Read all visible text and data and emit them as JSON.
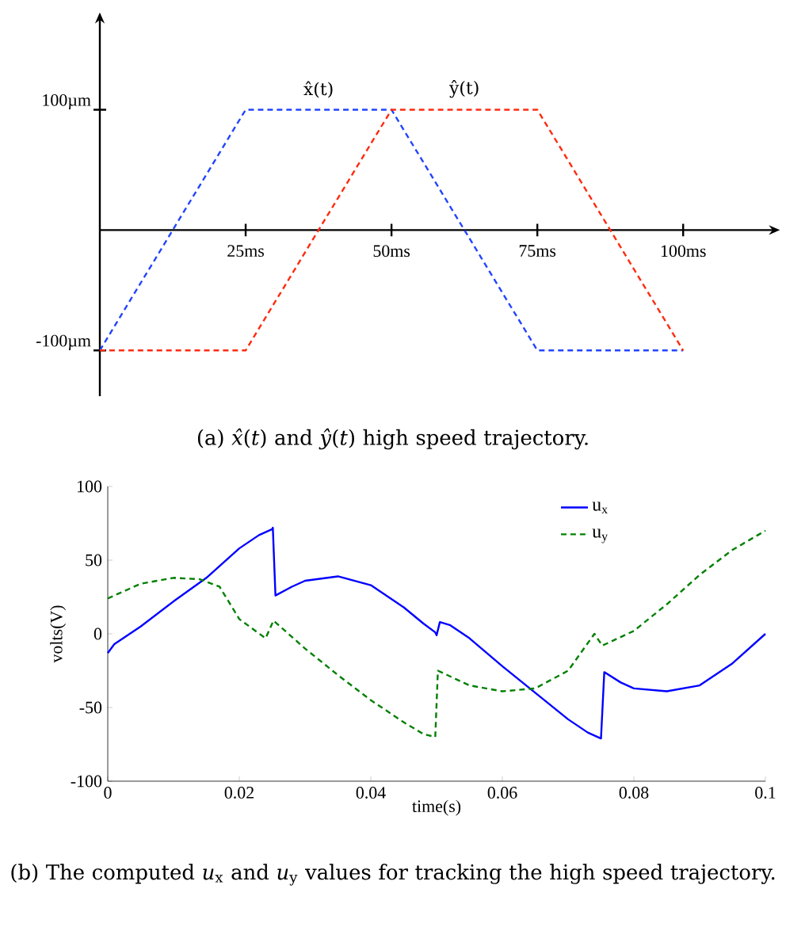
{
  "chart_data": [
    {
      "type": "line",
      "marker": "none",
      "xlim": [
        0,
        116
      ],
      "ylim": [
        -138,
        178
      ],
      "xticks": [
        {
          "value": 25,
          "label": "25ms"
        },
        {
          "value": 50,
          "label": "50ms"
        },
        {
          "value": 75,
          "label": "75ms"
        },
        {
          "value": 100,
          "label": "100ms"
        }
      ],
      "yticks": [
        {
          "value": -100,
          "label": "-100µm"
        },
        {
          "value": 100,
          "label": "100µm"
        }
      ],
      "series": [
        {
          "name": "x̂(t)",
          "color": "#2244ff",
          "line_style": "dashed",
          "x": [
            0,
            25,
            50,
            75,
            100
          ],
          "values": [
            -100,
            100,
            100,
            -100,
            -100
          ]
        },
        {
          "name": "ŷ(t)",
          "color": "#ff2a10",
          "line_style": "dashed",
          "x": [
            0,
            25,
            50,
            75,
            100
          ],
          "values": [
            -100,
            -100,
            100,
            100,
            -100
          ]
        }
      ],
      "annotations": [
        "(a) *x̂*(*t*) and *ŷ*(*t*) high speed trajectory."
      ]
    },
    {
      "type": "line",
      "marker": "none",
      "xlabel": "time(s)",
      "ylabel": "volts(V)",
      "legend": "top right",
      "grid": false,
      "xlim": [
        0,
        0.1
      ],
      "ylim": [
        -100,
        100
      ],
      "xticks": [
        0,
        0.02,
        0.04,
        0.06,
        0.08,
        0.1
      ],
      "yticks": [
        -100,
        -50,
        0,
        50,
        100
      ],
      "series": [
        {
          "name": "u$_{x}$",
          "color": "#0000ff",
          "line_style": "solid",
          "x": [
            0,
            0.001,
            0.005,
            0.01,
            0.015,
            0.02,
            0.023,
            0.025,
            0.0251,
            0.0255,
            0.028,
            0.03,
            0.035,
            0.04,
            0.045,
            0.048,
            0.0498,
            0.05,
            0.0505,
            0.052,
            0.055,
            0.06,
            0.065,
            0.07,
            0.073,
            0.075,
            0.0755,
            0.078,
            0.08,
            0.085,
            0.09,
            0.095,
            0.1
          ],
          "values": [
            -13,
            -7,
            5,
            22,
            38,
            58,
            67,
            71,
            72,
            26,
            32,
            36,
            39,
            33,
            18,
            7,
            1,
            -1,
            8,
            6,
            -3,
            -22,
            -40,
            -58,
            -67,
            -71,
            -26,
            -33,
            -37,
            -39,
            -35,
            -20,
            0
          ]
        },
        {
          "name": "u$_{y}$",
          "color": "#008000",
          "line_style": "dashed",
          "x": [
            0,
            0.005,
            0.01,
            0.014,
            0.017,
            0.02,
            0.024,
            0.0252,
            0.03,
            0.035,
            0.04,
            0.045,
            0.048,
            0.0498,
            0.0502,
            0.055,
            0.06,
            0.065,
            0.07,
            0.074,
            0.0752,
            0.08,
            0.085,
            0.09,
            0.095,
            0.1
          ],
          "values": [
            24,
            34,
            38,
            37,
            32,
            10,
            -3,
            9,
            -10,
            -28,
            -45,
            -60,
            -68,
            -70,
            -25,
            -35,
            -39,
            -37,
            -25,
            0,
            -8,
            2,
            20,
            40,
            57,
            70
          ]
        }
      ],
      "annotations": [
        "(b) The computed *u*$_{x}$ and *u*$_{y}$ values for tracking the high speed trajectory."
      ]
    }
  ]
}
